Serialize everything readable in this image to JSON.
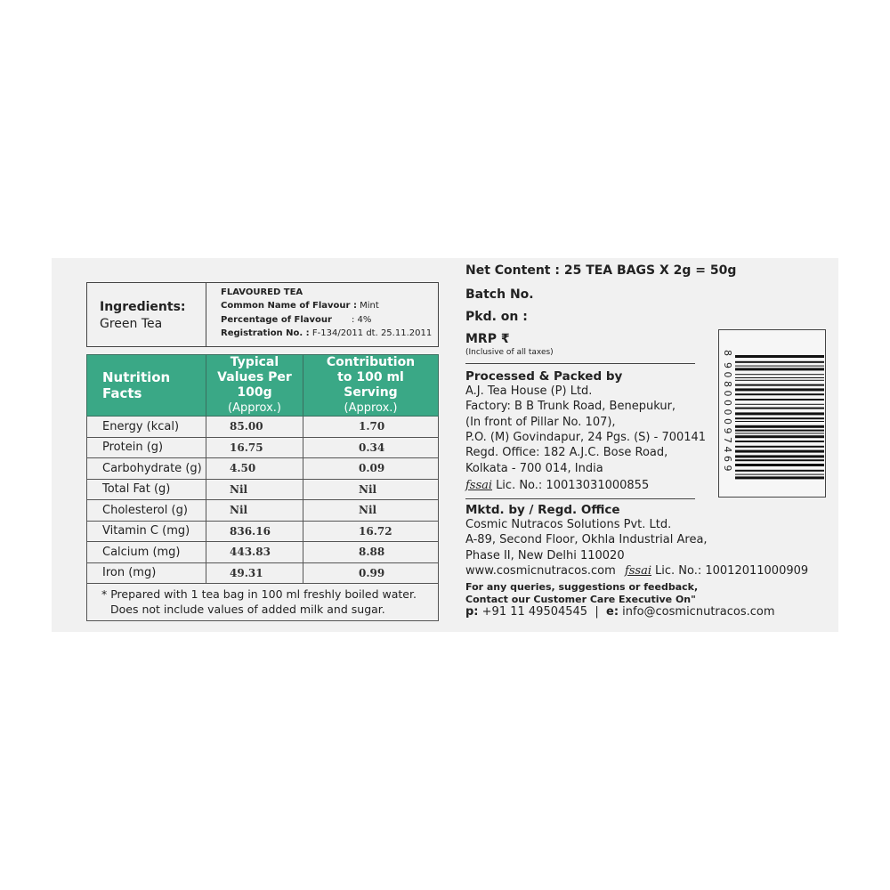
{
  "ingredients": {
    "heading": "Ingredients:",
    "value": "Green Tea",
    "type": "FLAVOURED TEA",
    "flavour_name_label": "Common Name of Flavour :",
    "flavour_name": "Mint",
    "flavour_pct_label": "Percentage of Flavour",
    "flavour_pct": ": 4%",
    "registration_label": "Registration No. :",
    "registration": "F-134/2011 dt. 25.11.2011"
  },
  "nutrition": {
    "header": {
      "col1": "Nutrition Facts",
      "col2": "Typical Values Per 100g",
      "col2_sub": "(Approx.)",
      "col3": "Contribution to 100 ml Serving",
      "col3_sub": "(Approx.)"
    },
    "rows": [
      {
        "name": "Energy (kcal)",
        "per100g": "85.00",
        "serving": "1.70"
      },
      {
        "name": "Protein (g)",
        "per100g": "16.75",
        "serving": "0.34"
      },
      {
        "name": "Carbohydrate (g)",
        "per100g": "4.50",
        "serving": "0.09"
      },
      {
        "name": "Total Fat (g)",
        "per100g": "Nil",
        "serving": "Nil"
      },
      {
        "name": "Cholesterol (g)",
        "per100g": "Nil",
        "serving": "Nil"
      },
      {
        "name": "Vitamin C (mg)",
        "per100g": "836.16",
        "serving": "16.72"
      },
      {
        "name": "Calcium (mg)",
        "per100g": "443.83",
        "serving": "8.88"
      },
      {
        "name": "Iron (mg)",
        "per100g": "49.31",
        "serving": "0.99"
      }
    ],
    "footnote_1": "* Prepared with 1 tea bag in 100 ml freshly boiled water.",
    "footnote_2": "Does not include values of added milk and sugar.",
    "header_color": "#3aa886"
  },
  "info": {
    "net_content": "Net Content : 25 TEA BAGS X 2g = 50g",
    "batch": "Batch No.",
    "packed_on": "Pkd. on :",
    "mrp": "MRP ₹",
    "mrp_note": "(Inclusive of all taxes)",
    "packer_heading": "Processed & Packed by",
    "packer_lines": [
      "A.J. Tea House (P) Ltd.",
      "Factory: B B Trunk Road, Benepukur,",
      "(In front of Pillar No. 107),",
      "P.O. (M) Govindapur, 24 Pgs. (S) - 700141",
      "Regd. Office: 182 A.J.C. Bose Road,",
      "Kolkata - 700 014, India"
    ],
    "fssai_logo": "fssai",
    "packer_lic": "Lic. No.: 10013031000855",
    "marketer_heading": "Mktd. by / Regd. Office",
    "marketer_lines": [
      "Cosmic Nutracos Solutions Pvt. Ltd.",
      "A-89, Second Floor, Okhla Industrial Area,",
      "Phase II, New Delhi 110020"
    ],
    "website": "www.cosmicnutracos.com",
    "marketer_lic": "Lic. No.: 10012011000909",
    "query_1": "For any queries, suggestions or feedback,",
    "query_2": "Contact our Customer Care Executive On\"",
    "phone_label": "p:",
    "phone": "+91 11 49504545",
    "email_label": "e:",
    "email": "info@cosmicnutracos.com"
  },
  "barcode": {
    "digits": "8908000097469"
  }
}
